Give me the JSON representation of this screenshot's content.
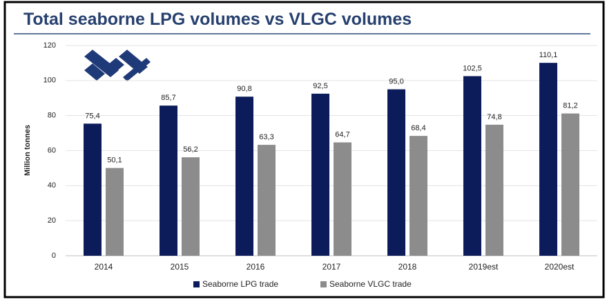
{
  "chart_data": {
    "type": "bar",
    "title": "Total seaborne LPG volumes vs VLGC volumes",
    "y_label": "Million tonnes",
    "categories": [
      "2014",
      "2015",
      "2016",
      "2017",
      "2018",
      "2019est",
      "2020est"
    ],
    "series": [
      {
        "name": "Seaborne LPG trade",
        "color": "#0c1c5a",
        "values": [
          75.4,
          85.7,
          90.8,
          92.5,
          95.0,
          102.5,
          110.1
        ],
        "value_labels": [
          "75,4",
          "85,7",
          "90,8",
          "92,5",
          "95,0",
          "102,5",
          "110,1"
        ]
      },
      {
        "name": "Seaborne VLGC trade",
        "color": "#8c8c8c",
        "values": [
          50.1,
          56.2,
          63.3,
          64.7,
          68.4,
          74.8,
          81.2
        ],
        "value_labels": [
          "50,1",
          "56,2",
          "63,3",
          "64,7",
          "68,4",
          "74,8",
          "81,2"
        ]
      }
    ],
    "ylim": [
      0,
      120
    ],
    "yticks": [
      0,
      20,
      40,
      60,
      80,
      100,
      120
    ],
    "grid": true,
    "legend": "bottom"
  }
}
